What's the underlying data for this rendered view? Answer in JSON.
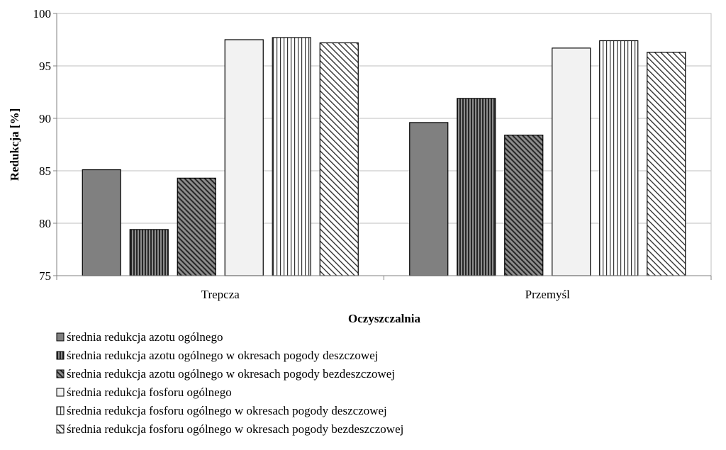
{
  "chart_data": {
    "type": "bar",
    "xlabel": "Oczyszczalnia",
    "ylabel": "Redukcja [%]",
    "ylim": [
      75,
      100
    ],
    "yticks": [
      75,
      80,
      85,
      90,
      95,
      100
    ],
    "categories": [
      "Trepcza",
      "Przemyśl"
    ],
    "grid": true,
    "legend_position": "bottom",
    "series": [
      {
        "name": "średnia redukcja azotu ogólnego",
        "values": [
          85.1,
          89.6
        ],
        "fill": "solid-dark",
        "color": "#7f7f7f"
      },
      {
        "name": "średnia redukcja azotu ogólnego w okresach pogody deszczowej",
        "values": [
          79.4,
          91.9
        ],
        "fill": "vertical-dark",
        "color": "#595959"
      },
      {
        "name": "średnia redukcja azotu ogólnego w okresach pogody bezdeszczowej",
        "values": [
          84.3,
          88.4
        ],
        "fill": "diagonal-dark",
        "color": "#595959"
      },
      {
        "name": "średnia redukcja fosforu ogólnego",
        "values": [
          97.5,
          96.7
        ],
        "fill": "solid-light",
        "color": "#f2f2f2"
      },
      {
        "name": "średnia redukcja fosforu ogólnego w okresach pogody deszczowej",
        "values": [
          97.7,
          97.4
        ],
        "fill": "vertical-light",
        "color": "#595959"
      },
      {
        "name": "średnia redukcja fosforu ogólnego w okresach pogody bezdeszczowej",
        "values": [
          97.2,
          96.3
        ],
        "fill": "diagonal-light",
        "color": "#595959"
      }
    ]
  }
}
